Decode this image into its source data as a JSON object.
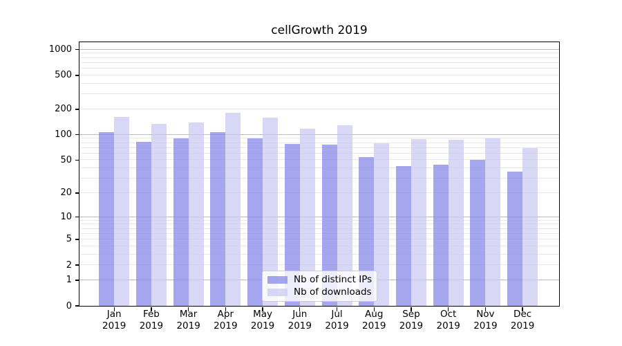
{
  "page": {
    "title": "cellGrowth 2019"
  },
  "colors": {
    "background": "#ffffff",
    "bar_ips": "rgba(132,132,232,0.72)",
    "bar_downloads": "rgba(201,201,243,0.72)",
    "grid_major": "#bababa",
    "grid_minor": "#e9e9e9",
    "axis": "#000000",
    "legend_border": "#cccccc"
  },
  "y_axis": {
    "ticks": [
      0,
      1,
      2,
      5,
      10,
      20,
      50,
      100,
      200,
      500,
      1000
    ]
  },
  "x_axis": {
    "year": "2019",
    "months": [
      "Jan",
      "Feb",
      "Mar",
      "Apr",
      "May",
      "Jun",
      "Jul",
      "Aug",
      "Sep",
      "Oct",
      "Nov",
      "Dec"
    ]
  },
  "legend": {
    "items": [
      {
        "label": "Nb of distinct IPs"
      },
      {
        "label": "Nb of downloads"
      }
    ]
  },
  "chart_data": {
    "type": "bar",
    "title": "cellGrowth 2019",
    "categories": [
      "Jan 2019",
      "Feb 2019",
      "Mar 2019",
      "Apr 2019",
      "May 2019",
      "Jun 2019",
      "Jul 2019",
      "Aug 2019",
      "Sep 2019",
      "Oct 2019",
      "Nov 2019",
      "Dec 2019"
    ],
    "series": [
      {
        "name": "Nb of distinct IPs",
        "values": [
          107,
          82,
          90,
          108,
          91,
          78,
          77,
          54,
          42,
          44,
          50,
          36
        ]
      },
      {
        "name": "Nb of downloads",
        "values": [
          163,
          134,
          139,
          181,
          160,
          118,
          130,
          80,
          89,
          87,
          91,
          70
        ]
      }
    ],
    "y_scale": "log-like (log10(1+v)), zero pinned at axis bottom",
    "y_ticks": [
      0,
      1,
      2,
      5,
      10,
      20,
      50,
      100,
      200,
      500,
      1000
    ],
    "ylim": [
      0,
      1200
    ],
    "xlabel": "",
    "ylabel": "",
    "grid": true,
    "legend_position": "lower center, inside axes"
  }
}
